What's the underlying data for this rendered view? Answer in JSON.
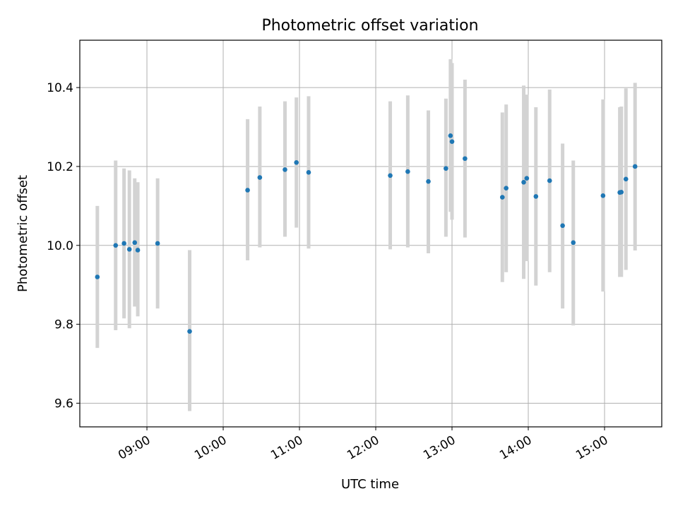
{
  "chart_data": {
    "type": "scatter",
    "title": "Photometric offset variation",
    "xlabel": "UTC time",
    "ylabel": "Photometric offset",
    "grid": true,
    "xlim": [
      8.12,
      15.75
    ],
    "ylim": [
      9.54,
      10.52
    ],
    "x_ticks": [
      {
        "value": 9,
        "label": "09:00"
      },
      {
        "value": 10,
        "label": "10:00"
      },
      {
        "value": 11,
        "label": "11:00"
      },
      {
        "value": 12,
        "label": "12:00"
      },
      {
        "value": 13,
        "label": "13:00"
      },
      {
        "value": 14,
        "label": "14:00"
      },
      {
        "value": 15,
        "label": "15:00"
      }
    ],
    "y_ticks": [
      {
        "value": 9.6,
        "label": "9.6"
      },
      {
        "value": 9.8,
        "label": "9.8"
      },
      {
        "value": 10.0,
        "label": "10.0"
      },
      {
        "value": 10.2,
        "label": "10.2"
      },
      {
        "value": 10.4,
        "label": "10.4"
      }
    ],
    "colors": {
      "marker": "#1f77b4",
      "errorbar": "#d3d3d3",
      "grid": "#b0b0b0"
    },
    "series": [
      {
        "name": "photometric offset",
        "points": [
          {
            "x": 8.35,
            "y": 9.92,
            "lo": 9.74,
            "hi": 10.1
          },
          {
            "x": 8.59,
            "y": 10.0,
            "lo": 9.785,
            "hi": 10.215
          },
          {
            "x": 8.7,
            "y": 10.005,
            "lo": 9.815,
            "hi": 10.195
          },
          {
            "x": 8.77,
            "y": 9.99,
            "lo": 9.79,
            "hi": 10.19
          },
          {
            "x": 8.84,
            "y": 10.007,
            "lo": 9.845,
            "hi": 10.17
          },
          {
            "x": 8.88,
            "y": 9.988,
            "lo": 9.82,
            "hi": 10.16
          },
          {
            "x": 9.14,
            "y": 10.005,
            "lo": 9.84,
            "hi": 10.17
          },
          {
            "x": 9.56,
            "y": 9.782,
            "lo": 9.58,
            "hi": 9.988
          },
          {
            "x": 10.32,
            "y": 10.14,
            "lo": 9.962,
            "hi": 10.32
          },
          {
            "x": 10.48,
            "y": 10.172,
            "lo": 9.995,
            "hi": 10.352
          },
          {
            "x": 10.81,
            "y": 10.192,
            "lo": 10.022,
            "hi": 10.365
          },
          {
            "x": 10.96,
            "y": 10.21,
            "lo": 10.045,
            "hi": 10.375
          },
          {
            "x": 11.12,
            "y": 10.185,
            "lo": 9.992,
            "hi": 10.378
          },
          {
            "x": 12.19,
            "y": 10.177,
            "lo": 9.99,
            "hi": 10.365
          },
          {
            "x": 12.42,
            "y": 10.187,
            "lo": 9.995,
            "hi": 10.38
          },
          {
            "x": 12.69,
            "y": 10.162,
            "lo": 9.98,
            "hi": 10.342
          },
          {
            "x": 12.92,
            "y": 10.195,
            "lo": 10.022,
            "hi": 10.372
          },
          {
            "x": 12.98,
            "y": 10.278,
            "lo": 10.085,
            "hi": 10.472
          },
          {
            "x": 13.0,
            "y": 10.263,
            "lo": 10.065,
            "hi": 10.462
          },
          {
            "x": 13.17,
            "y": 10.22,
            "lo": 10.02,
            "hi": 10.42
          },
          {
            "x": 13.66,
            "y": 10.122,
            "lo": 9.907,
            "hi": 10.337
          },
          {
            "x": 13.71,
            "y": 10.145,
            "lo": 9.932,
            "hi": 10.357
          },
          {
            "x": 13.94,
            "y": 10.16,
            "lo": 9.915,
            "hi": 10.405
          },
          {
            "x": 13.98,
            "y": 10.17,
            "lo": 9.96,
            "hi": 10.382
          },
          {
            "x": 14.1,
            "y": 10.124,
            "lo": 9.898,
            "hi": 10.35
          },
          {
            "x": 14.28,
            "y": 10.164,
            "lo": 9.932,
            "hi": 10.395
          },
          {
            "x": 14.45,
            "y": 10.05,
            "lo": 9.84,
            "hi": 10.258
          },
          {
            "x": 14.59,
            "y": 10.007,
            "lo": 9.797,
            "hi": 10.215
          },
          {
            "x": 14.98,
            "y": 10.126,
            "lo": 9.883,
            "hi": 10.37
          },
          {
            "x": 15.2,
            "y": 10.134,
            "lo": 9.92,
            "hi": 10.35
          },
          {
            "x": 15.22,
            "y": 10.135,
            "lo": 9.92,
            "hi": 10.352
          },
          {
            "x": 15.28,
            "y": 10.168,
            "lo": 9.938,
            "hi": 10.398
          },
          {
            "x": 15.4,
            "y": 10.2,
            "lo": 9.987,
            "hi": 10.412
          }
        ]
      }
    ]
  }
}
